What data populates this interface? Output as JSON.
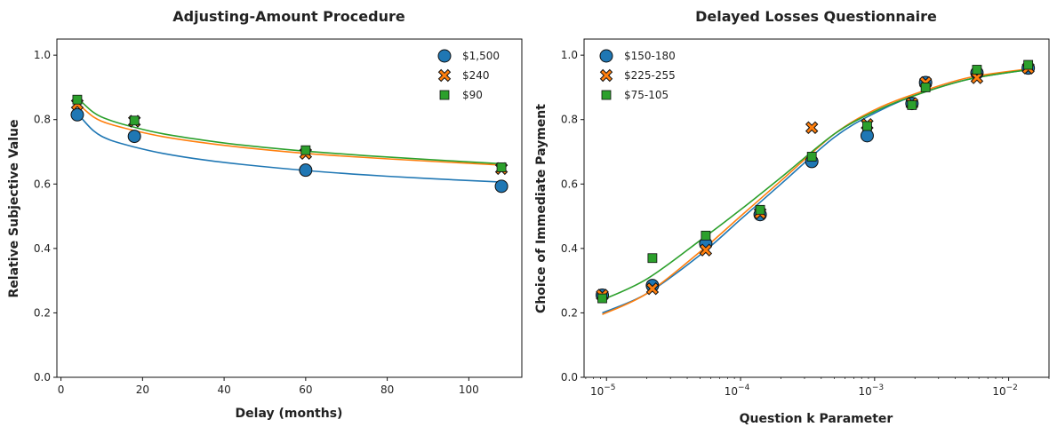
{
  "chart_data": [
    {
      "type": "scatter",
      "title": "Adjusting-Amount Procedure",
      "xlabel": "Delay (months)",
      "ylabel": "Relative Subjective Value",
      "xlim": [
        -1,
        113
      ],
      "ylim": [
        0,
        1.05
      ],
      "xticks": [
        0,
        20,
        40,
        60,
        80,
        100
      ],
      "xtick_labels": [
        "0",
        "20",
        "40",
        "60",
        "80",
        "100"
      ],
      "yticks": [
        0.0,
        0.2,
        0.4,
        0.6,
        0.8,
        1.0
      ],
      "ytick_labels": [
        "0.0",
        "0.2",
        "0.4",
        "0.6",
        "0.8",
        "1.0"
      ],
      "grid": false,
      "legend_position": "top-right",
      "series": [
        {
          "name": "$1,500",
          "marker": "circle",
          "color": "#1f77b4",
          "x": [
            4,
            18,
            60,
            108
          ],
          "y": [
            0.815,
            0.748,
            0.643,
            0.593
          ],
          "fit_x": [
            4,
            8,
            12,
            18,
            25,
            35,
            45,
            60,
            75,
            90,
            108
          ],
          "fit_y": [
            0.82,
            0.765,
            0.737,
            0.715,
            0.695,
            0.675,
            0.66,
            0.642,
            0.628,
            0.617,
            0.606
          ]
        },
        {
          "name": "$240",
          "marker": "x",
          "color": "#ff7f0e",
          "x": [
            4,
            18,
            60,
            108
          ],
          "y": [
            0.848,
            0.795,
            0.695,
            0.648
          ],
          "fit_x": [
            4,
            8,
            12,
            18,
            25,
            35,
            45,
            60,
            75,
            90,
            108
          ],
          "fit_y": [
            0.852,
            0.808,
            0.786,
            0.766,
            0.747,
            0.728,
            0.713,
            0.695,
            0.682,
            0.671,
            0.659
          ]
        },
        {
          "name": "$90",
          "marker": "square",
          "color": "#2ca02c",
          "x": [
            4,
            18,
            60,
            108
          ],
          "y": [
            0.862,
            0.797,
            0.705,
            0.652
          ],
          "fit_x": [
            4,
            8,
            12,
            18,
            25,
            35,
            45,
            60,
            75,
            90,
            108
          ],
          "fit_y": [
            0.868,
            0.822,
            0.798,
            0.776,
            0.756,
            0.736,
            0.72,
            0.702,
            0.688,
            0.676,
            0.663
          ]
        }
      ]
    },
    {
      "type": "scatter",
      "title": "Delayed Losses Questionnaire",
      "xlabel": "Question k Parameter",
      "ylabel": "Choice of Immediate Payment",
      "xscale": "log",
      "xlim": [
        6.8e-06,
        0.02
      ],
      "ylim": [
        0,
        1.05
      ],
      "xticks": [
        1e-05,
        0.0001,
        0.001,
        0.01
      ],
      "xtick_labels": [
        [
          "10",
          "−5"
        ],
        [
          "10",
          "−4"
        ],
        [
          "10",
          "−3"
        ],
        [
          "10",
          "−2"
        ]
      ],
      "yticks": [
        0.0,
        0.2,
        0.4,
        0.6,
        0.8,
        1.0
      ],
      "ytick_labels": [
        "0.0",
        "0.2",
        "0.4",
        "0.6",
        "0.8",
        "1.0"
      ],
      "grid": false,
      "legend_position": "top-left",
      "series": [
        {
          "name": "$150-180",
          "marker": "circle",
          "color": "#1f77b4",
          "x": [
            9.3e-06,
            2.2e-05,
            5.5e-05,
            0.00014,
            0.00034,
            0.00088,
            0.0019,
            0.0024,
            0.0058,
            0.014
          ],
          "y": [
            0.255,
            0.285,
            0.415,
            0.505,
            0.67,
            0.75,
            0.85,
            0.915,
            0.945,
            0.96
          ]
        },
        {
          "name": "$225-255",
          "marker": "x",
          "color": "#ff7f0e",
          "x": [
            9.3e-06,
            2.2e-05,
            5.5e-05,
            0.00014,
            0.00034,
            0.00088,
            0.0019,
            0.0024,
            0.0058,
            0.014
          ],
          "y": [
            0.255,
            0.275,
            0.395,
            0.51,
            0.775,
            0.785,
            0.85,
            0.915,
            0.93,
            0.96
          ]
        },
        {
          "name": "$75-105",
          "marker": "square",
          "color": "#2ca02c",
          "x": [
            9.3e-06,
            2.2e-05,
            5.5e-05,
            0.00014,
            0.00034,
            0.00088,
            0.0019,
            0.0024,
            0.0058,
            0.014
          ],
          "y": [
            0.245,
            0.37,
            0.44,
            0.52,
            0.685,
            0.78,
            0.845,
            0.9,
            0.955,
            0.97
          ]
        }
      ],
      "fits": [
        {
          "color": "#1f77b4",
          "x": [
            9.3e-06,
            2e-05,
            5e-05,
            0.0001,
            0.0002,
            0.0005,
            0.001,
            0.002,
            0.005,
            0.014
          ],
          "y": [
            0.2,
            0.26,
            0.38,
            0.49,
            0.6,
            0.745,
            0.82,
            0.875,
            0.925,
            0.955
          ]
        },
        {
          "color": "#ff7f0e",
          "x": [
            9.3e-06,
            2e-05,
            5e-05,
            0.0001,
            0.0002,
            0.0005,
            0.001,
            0.002,
            0.005,
            0.014
          ],
          "y": [
            0.195,
            0.26,
            0.39,
            0.5,
            0.61,
            0.755,
            0.83,
            0.88,
            0.93,
            0.957
          ]
        },
        {
          "color": "#2ca02c",
          "x": [
            9.3e-06,
            2e-05,
            5e-05,
            0.0001,
            0.0002,
            0.0005,
            0.001,
            0.002,
            0.005,
            0.014
          ],
          "y": [
            0.24,
            0.305,
            0.425,
            0.52,
            0.62,
            0.755,
            0.825,
            0.875,
            0.925,
            0.955
          ]
        }
      ]
    }
  ]
}
